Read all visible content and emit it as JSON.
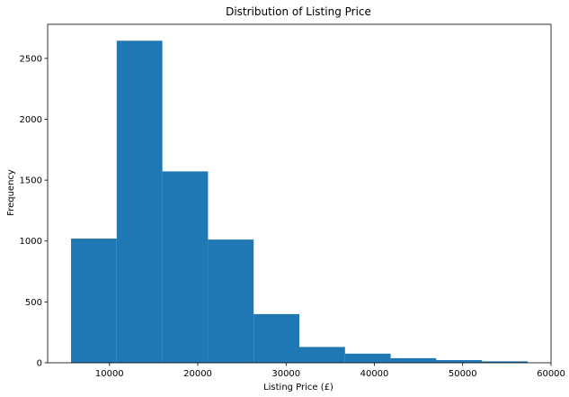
{
  "chart_data": {
    "type": "bar",
    "subtype": "histogram",
    "title": "Distribution of Listing Price",
    "xlabel": "Listing Price (£)",
    "ylabel": "Frequency",
    "bin_edges": [
      5650,
      10820,
      15990,
      21160,
      26330,
      31500,
      36670,
      41840,
      47010,
      52180,
      57350
    ],
    "values": [
      1020,
      2645,
      1572,
      1012,
      400,
      130,
      75,
      38,
      22,
      12
    ],
    "xlim": [
      3000,
      60000
    ],
    "ylim": [
      0,
      2780
    ],
    "xticks": [
      10000,
      20000,
      30000,
      40000,
      50000,
      60000
    ],
    "yticks": [
      0,
      500,
      1000,
      1500,
      2000,
      2500
    ],
    "grid": false,
    "legend": "none",
    "bar_color": "#1f77b4"
  }
}
